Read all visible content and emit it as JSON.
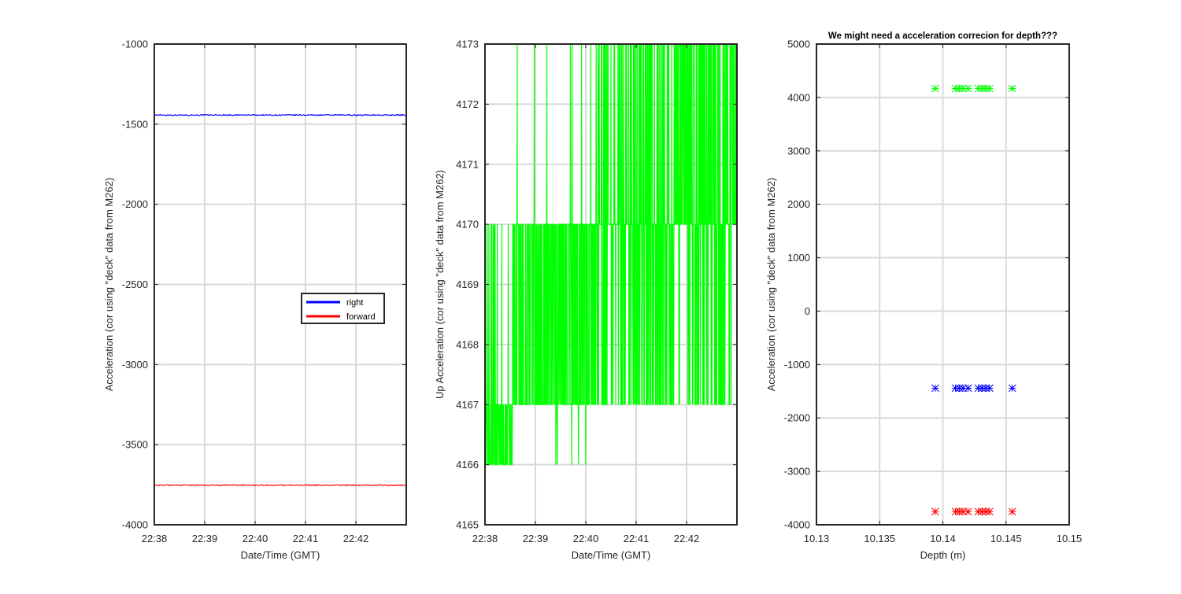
{
  "colors": {
    "right": "#0000ff",
    "forward": "#ff0000",
    "up": "#00ff00",
    "grid": "#d9d9d9",
    "axis": "#262626"
  },
  "chart_data": [
    {
      "type": "line",
      "title": "",
      "xlabel": "Date/Time (GMT)",
      "ylabel": "Acceleration (cor using \"deck\" data from M262)",
      "xlim": [
        0,
        5
      ],
      "ylim": [
        -4000,
        -1000
      ],
      "x_ticks": [
        0,
        1,
        2,
        3,
        4
      ],
      "x_tick_labels": [
        "22:38",
        "22:39",
        "22:40",
        "22:41",
        "22:42"
      ],
      "y_ticks": [
        -4000,
        -3500,
        -3000,
        -2500,
        -2000,
        -1500,
        -1000
      ],
      "y_tick_labels": [
        "-4000",
        "-3500",
        "-3000",
        "-2500",
        "-2000",
        "-1500",
        "-1000"
      ],
      "grid": true,
      "legend": {
        "placement": "center-right",
        "entries": [
          "right",
          "forward"
        ]
      },
      "series": [
        {
          "name": "right",
          "color": "#0000ff",
          "x": [
            0,
            5
          ],
          "values": [
            -1443,
            -1443
          ]
        },
        {
          "name": "forward",
          "color": "#ff0000",
          "x": [
            0,
            5
          ],
          "values": [
            -3753,
            -3753
          ]
        }
      ]
    },
    {
      "type": "line",
      "title": "",
      "xlabel": "Date/Time (GMT)",
      "ylabel": "Up Acceleration (cor using \"deck\" data from M262)",
      "xlim": [
        0,
        5
      ],
      "ylim": [
        4165,
        4173
      ],
      "x_ticks": [
        0,
        1,
        2,
        3,
        4
      ],
      "x_tick_labels": [
        "22:38",
        "22:39",
        "22:40",
        "22:41",
        "22:42"
      ],
      "y_ticks": [
        4165,
        4166,
        4167,
        4168,
        4169,
        4170,
        4171,
        4172,
        4173
      ],
      "y_tick_labels": [
        "4165",
        "4166",
        "4167",
        "4168",
        "4169",
        "4170",
        "4171",
        "4172",
        "4173"
      ],
      "grid": true,
      "series": [
        {
          "color": "#00ff00",
          "quantized_levels": [
            4166,
            4167,
            4170,
            4173
          ]
        }
      ]
    },
    {
      "type": "scatter",
      "title": "We might need a acceleration correcion for depth???",
      "xlabel": "Depth (m)",
      "ylabel": "Acceleration (cor using \"deck\" data from M262)",
      "xlim": [
        10.13,
        10.15
      ],
      "ylim": [
        -4000,
        5000
      ],
      "x_ticks": [
        10.13,
        10.135,
        10.14,
        10.145,
        10.15
      ],
      "x_tick_labels": [
        "10.13",
        "10.135",
        "10.14",
        "10.145",
        "10.15"
      ],
      "y_ticks": [
        -4000,
        -3000,
        -2000,
        -1000,
        0,
        1000,
        2000,
        3000,
        4000,
        5000
      ],
      "y_tick_labels": [
        "-4000",
        "-3000",
        "-2000",
        "-1000",
        "0",
        "1000",
        "2000",
        "3000",
        "4000",
        "5000"
      ],
      "grid": true,
      "marker": "x*",
      "series": [
        {
          "color": "#00ff00",
          "x": [
            10.1394,
            10.141,
            10.1413,
            10.1416,
            10.142,
            10.1428,
            10.1431,
            10.1434,
            10.1437,
            10.1455
          ],
          "y": [
            4168,
            4168,
            4168,
            4168,
            4168,
            4168,
            4168,
            4168,
            4168,
            4168
          ]
        },
        {
          "color": "#0000ff",
          "x": [
            10.1394,
            10.141,
            10.1413,
            10.1416,
            10.142,
            10.1428,
            10.1431,
            10.1434,
            10.1437,
            10.1455
          ],
          "y": [
            -1443,
            -1443,
            -1443,
            -1443,
            -1443,
            -1443,
            -1443,
            -1443,
            -1443,
            -1443
          ]
        },
        {
          "color": "#ff0000",
          "x": [
            10.1394,
            10.141,
            10.1413,
            10.1416,
            10.142,
            10.1428,
            10.1431,
            10.1434,
            10.1437,
            10.1455
          ],
          "y": [
            -3753,
            -3753,
            -3753,
            -3753,
            -3753,
            -3753,
            -3753,
            -3753,
            -3753,
            -3753
          ]
        }
      ]
    }
  ]
}
